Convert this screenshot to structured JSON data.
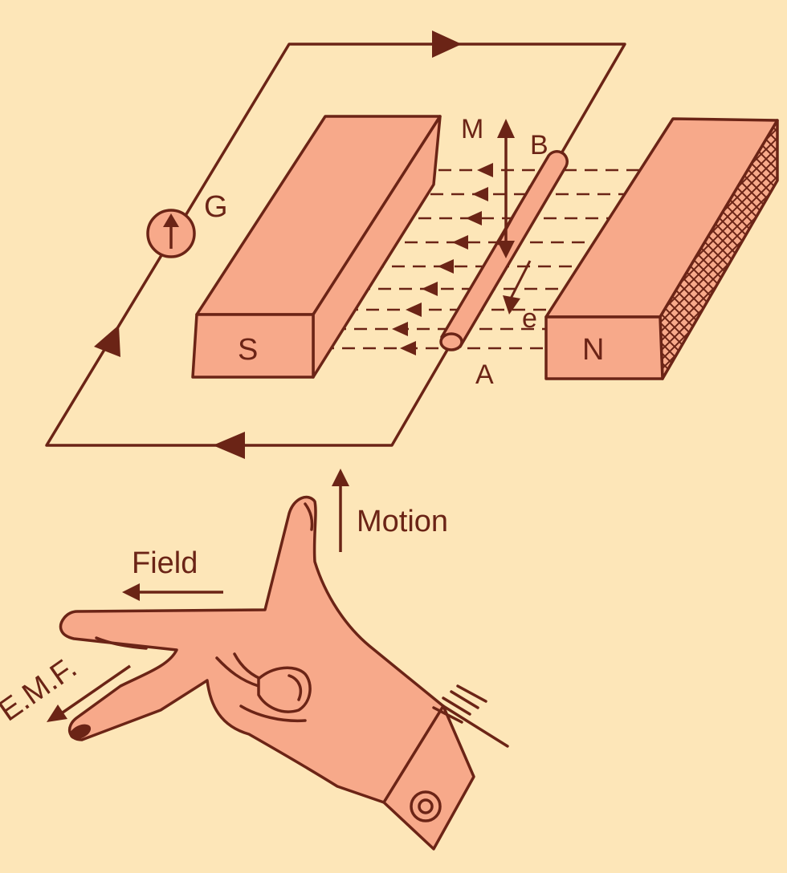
{
  "colors": {
    "background": "#fde6b8",
    "ink": "#6b2416",
    "fill": "#f7a98a"
  },
  "labels": {
    "galvanometer": "G",
    "south_pole": "S",
    "north_pole": "N",
    "conductor_top": "B",
    "conductor_bottom": "A",
    "motion_small": "M",
    "emf_small": "e",
    "motion": "Motion",
    "field": "Field",
    "emf": "E.M.F."
  }
}
